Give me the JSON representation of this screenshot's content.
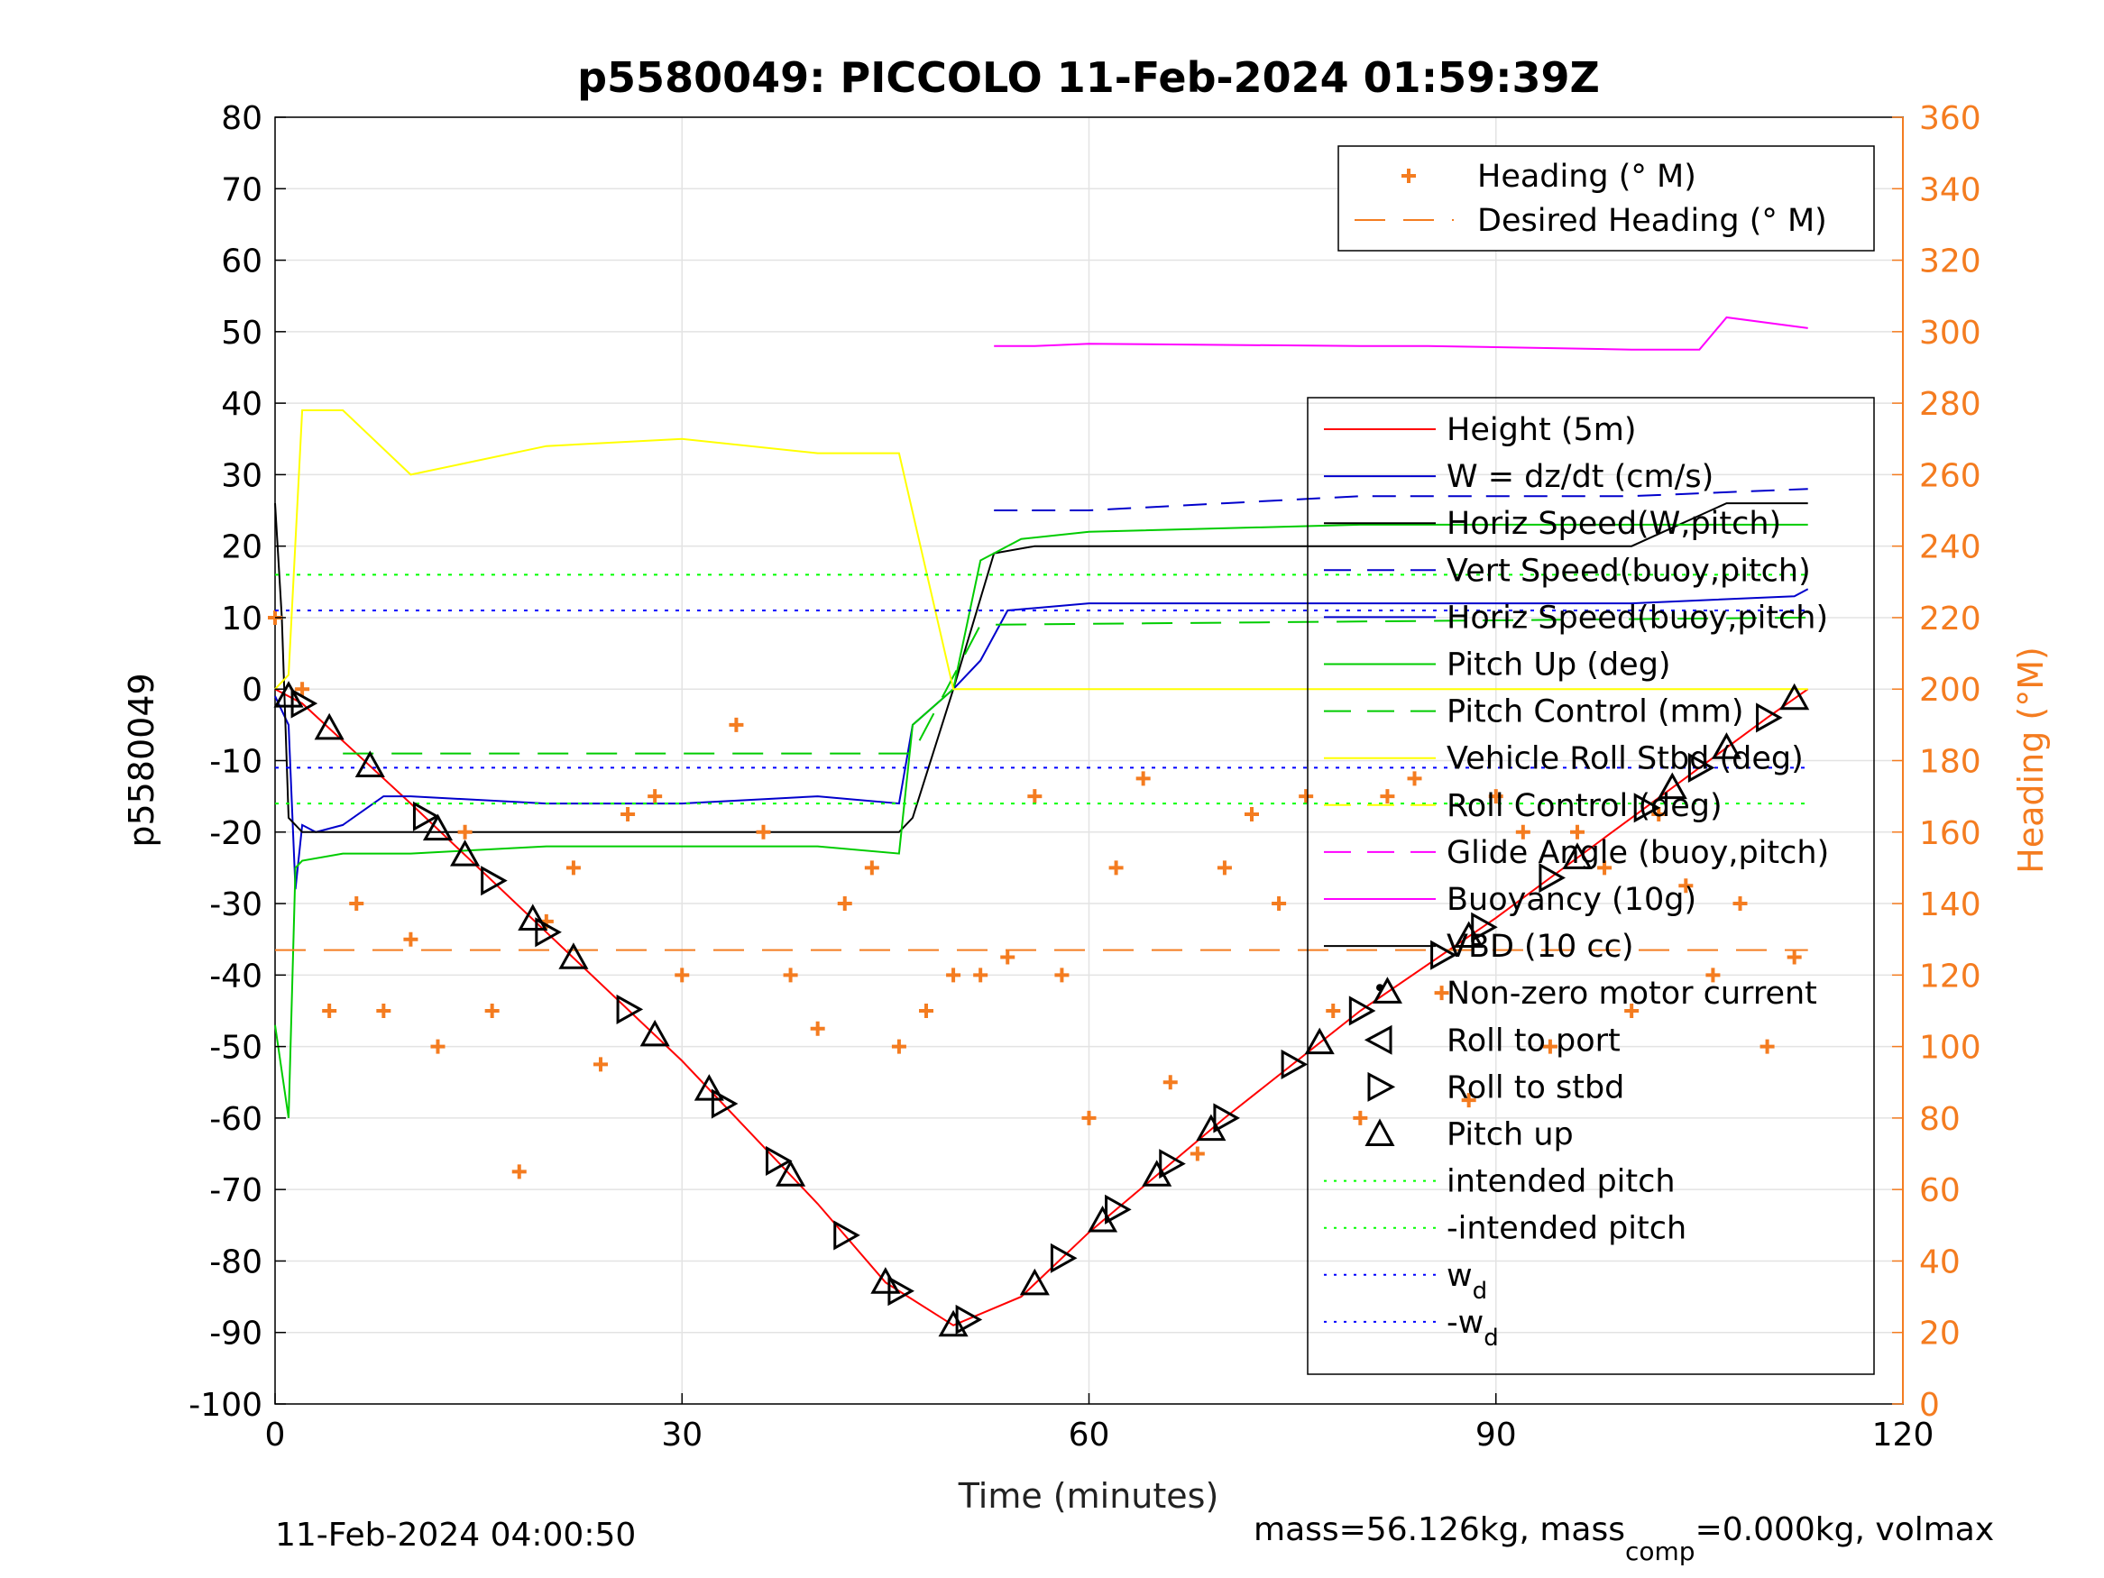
{
  "chart_data": {
    "type": "line",
    "title": "p5580049: PICCOLO 11-Feb-2024 01:59:39Z",
    "xlabel": "Time (minutes)",
    "ylabel": "p5580049",
    "y2label": "Heading (°M)",
    "xlim": [
      0,
      120
    ],
    "ylim": [
      -100,
      80
    ],
    "y2lim": [
      0,
      360
    ],
    "xticks": [
      0,
      30,
      60,
      90,
      120
    ],
    "yticks": [
      80,
      70,
      60,
      50,
      40,
      30,
      20,
      10,
      0,
      -10,
      -20,
      -30,
      -40,
      -50,
      -60,
      -70,
      -80,
      -90,
      -100
    ],
    "y2ticks": [
      360,
      340,
      320,
      300,
      280,
      260,
      240,
      220,
      200,
      180,
      160,
      140,
      120,
      100,
      80,
      60,
      40,
      20,
      0
    ],
    "grid": true,
    "footer_left": "11-Feb-2024 04:00:50",
    "footer_right": {
      "a": "mass=56.126kg, mass",
      "sub": "comp",
      "b": "=0.000kg, volmax"
    },
    "legend_heading": {
      "placement": "top-right",
      "entries": [
        {
          "label": "Heading (° M)",
          "color": "#f47c20",
          "style": "marker-plus"
        },
        {
          "label": "Desired Heading (° M)",
          "color": "#f47c20",
          "style": "dashed"
        }
      ]
    },
    "legend_main": {
      "placement": "right",
      "entries": [
        {
          "label": "Height (5m)",
          "color": "#ff0000",
          "style": "solid"
        },
        {
          "label": "W = dz/dt (cm/s)",
          "color": "#0000cc",
          "style": "solid"
        },
        {
          "label": "Horiz Speed(W,pitch)",
          "color": "#000000",
          "style": "solid"
        },
        {
          "label": "Vert Speed(buoy,pitch)",
          "color": "#0000cc",
          "style": "dashed"
        },
        {
          "label": "Horiz Speed(buoy,pitch)",
          "color": "#0000cc",
          "style": "solid"
        },
        {
          "label": "Pitch Up (deg)",
          "color": "#00cc00",
          "style": "solid"
        },
        {
          "label": "Pitch Control (mm)",
          "color": "#00cc00",
          "style": "dashed"
        },
        {
          "label": "Vehicle Roll Stbd (deg)",
          "color": "#ffff00",
          "style": "solid"
        },
        {
          "label": "Roll Control (deg)",
          "color": "#ffff00",
          "style": "dashed"
        },
        {
          "label": "Glide Angle (buoy,pitch)",
          "color": "#ff00ff",
          "style": "dashed"
        },
        {
          "label": "Buoyancy (10g)",
          "color": "#ff00ff",
          "style": "solid"
        },
        {
          "label": "VBD (10 cc)",
          "color": "#000000",
          "style": "solid"
        },
        {
          "label": "Non-zero motor current",
          "color": "#000000",
          "style": "dot"
        },
        {
          "label": "Roll to port",
          "color": "#000000",
          "style": "tri-left"
        },
        {
          "label": "Roll to stbd",
          "color": "#000000",
          "style": "tri-right"
        },
        {
          "label": "Pitch up",
          "color": "#000000",
          "style": "tri-up"
        },
        {
          "label": "intended pitch",
          "color": "#00ff00",
          "style": "dotted"
        },
        {
          "label": "-intended pitch",
          "color": "#00ff00",
          "style": "dotted"
        },
        {
          "label": "w",
          "sub": "d",
          "color": "#0000ff",
          "style": "dotted"
        },
        {
          "label": "-w",
          "sub": "d",
          "color": "#0000ff",
          "style": "dotted"
        }
      ]
    },
    "series": [
      {
        "name": "Height (5m)",
        "color": "#ff0000",
        "x": [
          0,
          2,
          10,
          20,
          30,
          40,
          45,
          50,
          55,
          60,
          70,
          80,
          90,
          100,
          110,
          113
        ],
        "y": [
          0,
          -2,
          -16,
          -34,
          -52,
          -72,
          -83,
          -89,
          -85,
          -76,
          -60,
          -45,
          -32,
          -18,
          -4,
          0
        ]
      },
      {
        "name": "W = dz/dt (cm/s)",
        "color": "#0000cc",
        "x": [
          0,
          1,
          1.5,
          2,
          3,
          5,
          8,
          10,
          20,
          30,
          40,
          46,
          47,
          50,
          52,
          54,
          60,
          70,
          80,
          90,
          100,
          112,
          113
        ],
        "y": [
          -1,
          -5,
          -28,
          -19,
          -20,
          -19,
          -15,
          -15,
          -16,
          -16,
          -15,
          -16,
          -5,
          0,
          4,
          11,
          12,
          12,
          12,
          12,
          12,
          13,
          14
        ]
      },
      {
        "name": "Horiz Speed(W,pitch)",
        "color": "#000000",
        "x": [
          0,
          0.5,
          1,
          2,
          10,
          20,
          30,
          40,
          46,
          47,
          50,
          53,
          56,
          60,
          80,
          100,
          107,
          113
        ],
        "y": [
          26,
          10,
          -18,
          -20,
          -20,
          -20,
          -20,
          -20,
          -20,
          -18,
          0,
          19,
          20,
          20,
          20,
          20,
          26,
          26
        ]
      },
      {
        "name": "Vert Speed(buoy,pitch)",
        "color": "#0000cc",
        "x": [
          53,
          60,
          70,
          80,
          90,
          100,
          113
        ],
        "y": [
          25,
          25,
          26,
          27,
          27,
          27,
          28
        ]
      },
      {
        "name": "Pitch Up (deg)",
        "color": "#00cc00",
        "x": [
          0,
          1,
          1.5,
          2,
          5,
          10,
          20,
          30,
          40,
          46,
          47,
          50,
          52,
          55,
          60,
          80,
          100,
          113
        ],
        "y": [
          -47,
          -60,
          -25,
          -24,
          -23,
          -23,
          -22,
          -22,
          -22,
          -23,
          -5,
          0,
          18,
          21,
          22,
          23,
          23,
          23
        ]
      },
      {
        "name": "Pitch Control (mm)",
        "color": "#00cc00",
        "x": [
          5,
          47,
          52,
          113
        ],
        "y": [
          -9,
          -9,
          9,
          10
        ]
      },
      {
        "name": "Buoyancy (10g)",
        "color": "#ff00ff",
        "x": [
          53,
          56,
          60,
          80,
          85,
          100,
          105,
          107,
          113
        ],
        "y": [
          48,
          48,
          48.3,
          48,
          48,
          47.5,
          47.5,
          52,
          50.5
        ]
      },
      {
        "name": "Vehicle Roll Stbd (deg)",
        "color": "#ffff00",
        "x": [
          0,
          1,
          2,
          5,
          10,
          20,
          30,
          40,
          46,
          50,
          60,
          80,
          100,
          113
        ],
        "y": [
          0,
          2,
          39,
          39,
          30,
          34,
          35,
          33,
          33,
          0,
          0,
          0,
          0,
          0
        ]
      },
      {
        "name": "Heading (° M)",
        "color": "#f47c20",
        "x": [
          0,
          2,
          4,
          6,
          8,
          10,
          12,
          14,
          16,
          18,
          20,
          22,
          24,
          26,
          28,
          30,
          34,
          36,
          38,
          40,
          42,
          44,
          46,
          48,
          50,
          52,
          54,
          56,
          58,
          60,
          62,
          64,
          66,
          68,
          70,
          72,
          74,
          76,
          78,
          80,
          82,
          84,
          86,
          88,
          90,
          92,
          94,
          96,
          98,
          100,
          102,
          104,
          106,
          108,
          110,
          112
        ],
        "y": [
          220,
          200,
          110,
          140,
          110,
          130,
          100,
          160,
          110,
          65,
          135,
          150,
          95,
          165,
          170,
          120,
          190,
          160,
          120,
          105,
          140,
          150,
          100,
          110,
          120,
          120,
          125,
          170,
          120,
          80,
          150,
          175,
          90,
          70,
          150,
          165,
          140,
          170,
          110,
          80,
          170,
          175,
          115,
          85,
          170,
          160,
          100,
          160,
          150,
          110,
          165,
          145,
          120,
          140,
          100,
          125
        ]
      },
      {
        "name": "Desired Heading (° M)",
        "color": "#f47c20",
        "x": [
          0,
          113
        ],
        "y": [
          127,
          127
        ]
      },
      {
        "name": "intended pitch",
        "color": "#00ff00",
        "x": [
          0,
          113
        ],
        "y": [
          16,
          16
        ]
      },
      {
        "name": "-intended pitch",
        "color": "#00ff00",
        "x": [
          0,
          113
        ],
        "y": [
          -16,
          -16
        ]
      },
      {
        "name": "w",
        "color": "#0000ff",
        "x": [
          0,
          113
        ],
        "y": [
          11,
          11
        ]
      },
      {
        "name": "-w",
        "color": "#0000ff",
        "x": [
          0,
          113
        ],
        "y": [
          -11,
          -11
        ]
      }
    ],
    "markers": {
      "roll_to_stbd_x": [
        2,
        11,
        16,
        20,
        26,
        33,
        37,
        42,
        46,
        51,
        58,
        62,
        66,
        70,
        75,
        80,
        86,
        89,
        94,
        101,
        105,
        110
      ],
      "pitch_up_x": [
        1,
        4,
        7,
        12,
        14,
        19,
        22,
        28,
        32,
        38,
        45,
        50,
        56,
        61,
        65,
        69,
        77,
        82,
        88,
        96,
        103,
        107,
        112
      ]
    }
  }
}
